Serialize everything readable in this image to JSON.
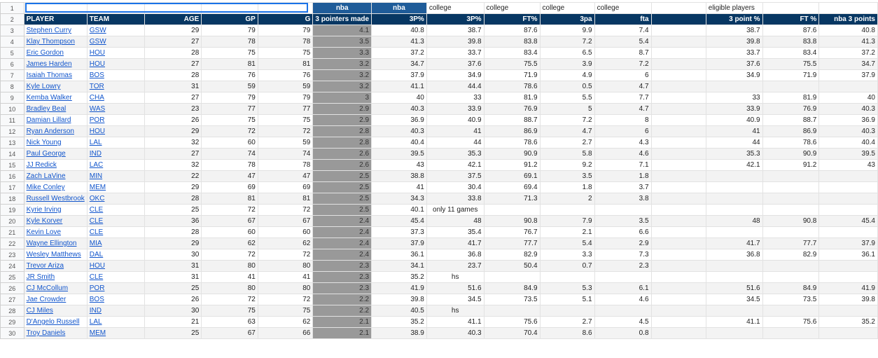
{
  "row_numbers": [
    1,
    2,
    3,
    4,
    5,
    6,
    7,
    8,
    9,
    10,
    11,
    12,
    13,
    14,
    15,
    16,
    17,
    18,
    19,
    20,
    21,
    22,
    23,
    24,
    25,
    26,
    27,
    28,
    29,
    30
  ],
  "rows": [
    [
      null,
      null,
      null,
      null,
      null,
      "nba",
      "nba",
      "college",
      "college",
      "college",
      "college",
      null,
      "eligible players",
      null,
      null
    ],
    [
      "PLAYER",
      "TEAM",
      "AGE",
      "GP",
      "G",
      "3 pointers made",
      "3P%",
      "3P%",
      "FT%",
      "3pa",
      "fta",
      null,
      "3 point %",
      "FT %",
      "nba 3 points"
    ],
    [
      "Stephen Curry",
      "GSW",
      29,
      79,
      79,
      4.1,
      40.8,
      38.7,
      87.6,
      9.9,
      7.4,
      null,
      38.7,
      87.6,
      40.8
    ],
    [
      "Klay Thompson",
      "GSW",
      27,
      78,
      78,
      3.5,
      41.3,
      39.8,
      83.8,
      7.2,
      5.4,
      null,
      39.8,
      83.8,
      41.3
    ],
    [
      "Eric Gordon",
      "HOU",
      28,
      75,
      75,
      3.3,
      37.2,
      33.7,
      83.4,
      6.5,
      8.7,
      null,
      33.7,
      83.4,
      37.2
    ],
    [
      "James Harden",
      "HOU",
      27,
      81,
      81,
      3.2,
      34.7,
      37.6,
      75.5,
      3.9,
      7.2,
      null,
      37.6,
      75.5,
      34.7
    ],
    [
      "Isaiah Thomas",
      "BOS",
      28,
      76,
      76,
      3.2,
      37.9,
      34.9,
      71.9,
      4.9,
      6,
      null,
      34.9,
      71.9,
      37.9
    ],
    [
      "Kyle Lowry",
      "TOR",
      31,
      59,
      59,
      3.2,
      41.1,
      44.4,
      78.6,
      0.5,
      4.7,
      null,
      null,
      null,
      null
    ],
    [
      "Kemba Walker",
      "CHA",
      27,
      79,
      79,
      3,
      40,
      33,
      81.9,
      5.5,
      7.7,
      null,
      33,
      81.9,
      40
    ],
    [
      "Bradley Beal",
      "WAS",
      23,
      77,
      77,
      2.9,
      40.3,
      33.9,
      76.9,
      5,
      4.7,
      null,
      33.9,
      76.9,
      40.3
    ],
    [
      "Damian Lillard",
      "POR",
      26,
      75,
      75,
      2.9,
      36.9,
      40.9,
      88.7,
      7.2,
      8,
      null,
      40.9,
      88.7,
      36.9
    ],
    [
      "Ryan Anderson",
      "HOU",
      29,
      72,
      72,
      2.8,
      40.3,
      41,
      86.9,
      4.7,
      6,
      null,
      41,
      86.9,
      40.3
    ],
    [
      "Nick Young",
      "LAL",
      32,
      60,
      59,
      2.8,
      40.4,
      44,
      78.6,
      2.7,
      4.3,
      null,
      44,
      78.6,
      40.4
    ],
    [
      "Paul George",
      "IND",
      27,
      74,
      74,
      2.6,
      39.5,
      35.3,
      90.9,
      5.8,
      4.6,
      null,
      35.3,
      90.9,
      39.5
    ],
    [
      "JJ Redick",
      "LAC",
      32,
      78,
      78,
      2.6,
      43,
      42.1,
      91.2,
      9.2,
      7.1,
      null,
      42.1,
      91.2,
      43
    ],
    [
      "Zach LaVine",
      "MIN",
      22,
      47,
      47,
      2.5,
      38.8,
      37.5,
      69.1,
      3.5,
      1.8,
      null,
      null,
      null,
      null
    ],
    [
      "Mike Conley",
      "MEM",
      29,
      69,
      69,
      2.5,
      41,
      30.4,
      69.4,
      1.8,
      3.7,
      null,
      null,
      null,
      null
    ],
    [
      "Russell Westbrook",
      "OKC",
      28,
      81,
      81,
      2.5,
      34.3,
      33.8,
      71.3,
      2,
      3.8,
      null,
      null,
      null,
      null
    ],
    [
      "Kyrie Irving",
      "CLE",
      25,
      72,
      72,
      2.5,
      40.1,
      "only 11 games",
      null,
      null,
      null,
      null,
      null,
      null,
      null
    ],
    [
      "Kyle Korver",
      "CLE",
      36,
      67,
      67,
      2.4,
      45.4,
      48,
      90.8,
      7.9,
      3.5,
      null,
      48,
      90.8,
      45.4
    ],
    [
      "Kevin Love",
      "CLE",
      28,
      60,
      60,
      2.4,
      37.3,
      35.4,
      76.7,
      2.1,
      6.6,
      null,
      null,
      null,
      null
    ],
    [
      "Wayne Ellington",
      "MIA",
      29,
      62,
      62,
      2.4,
      37.9,
      41.7,
      77.7,
      5.4,
      2.9,
      null,
      41.7,
      77.7,
      37.9
    ],
    [
      "Wesley Matthews",
      "DAL",
      30,
      72,
      72,
      2.4,
      36.1,
      36.8,
      82.9,
      3.3,
      7.3,
      null,
      36.8,
      82.9,
      36.1
    ],
    [
      "Trevor Ariza",
      "HOU",
      31,
      80,
      80,
      2.3,
      34.1,
      23.7,
      50.4,
      0.7,
      2.3,
      null,
      null,
      null,
      null
    ],
    [
      "JR Smith",
      "CLE",
      31,
      41,
      41,
      2.3,
      35.2,
      "hs",
      null,
      null,
      null,
      null,
      null,
      null,
      null
    ],
    [
      "CJ McCollum",
      "POR",
      25,
      80,
      80,
      2.3,
      41.9,
      51.6,
      84.9,
      5.3,
      6.1,
      null,
      51.6,
      84.9,
      41.9
    ],
    [
      "Jae Crowder",
      "BOS",
      26,
      72,
      72,
      2.2,
      39.8,
      34.5,
      73.5,
      5.1,
      4.6,
      null,
      34.5,
      73.5,
      39.8
    ],
    [
      "CJ Miles",
      "IND",
      30,
      75,
      75,
      2.2,
      40.5,
      "hs",
      null,
      null,
      null,
      null,
      null,
      null,
      null
    ],
    [
      "D'Angelo Russell",
      "LAL",
      21,
      63,
      62,
      2.1,
      35.2,
      41.1,
      75.6,
      2.7,
      4.5,
      null,
      41.1,
      75.6,
      35.2
    ],
    [
      "Troy Daniels",
      "MEM",
      25,
      67,
      66,
      2.1,
      38.9,
      40.3,
      70.4,
      8.6,
      0.8,
      null,
      null,
      null,
      null
    ]
  ]
}
